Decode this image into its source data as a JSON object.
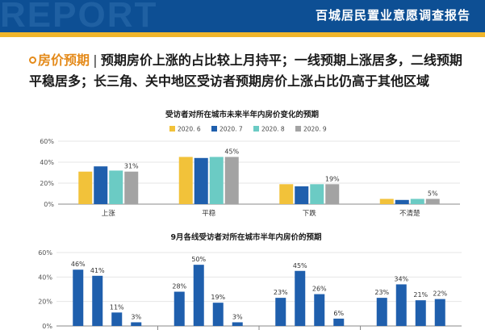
{
  "header": {
    "watermark": "REPORT",
    "title": "百城居民置业意愿调查报告"
  },
  "headline": {
    "tag": "房价预期",
    "separator": "|",
    "text": "预期房价上涨的占比较上月持平；一线预期上涨居多，二线预期平稳居多；长三角、关中地区受访者预期房价上涨占比仍高于其他区域"
  },
  "colors": {
    "s1": "#f2c23a",
    "s2": "#1f5fad",
    "s3": "#6bcbc4",
    "s4": "#a3a3a3"
  },
  "chart_data": [
    {
      "type": "bar",
      "title": "受访者对所在城市未来半年内房价变化的预期",
      "categories": [
        "上涨",
        "平稳",
        "下跌",
        "不清楚"
      ],
      "series": [
        {
          "name": "2020. 6",
          "values": [
            31,
            45,
            19,
            5
          ]
        },
        {
          "name": "2020. 7",
          "values": [
            36,
            44,
            17,
            4
          ]
        },
        {
          "name": "2020. 8",
          "values": [
            32,
            45,
            19,
            5
          ]
        },
        {
          "name": "2020. 9",
          "values": [
            31,
            45,
            19,
            5
          ]
        }
      ],
      "labeled_series": "2020. 9",
      "value_labels": [
        "31%",
        "45%",
        "19%",
        "5%"
      ],
      "yticks": [
        "0%",
        "20%",
        "40%",
        "60%"
      ],
      "ylim": [
        0,
        60
      ]
    },
    {
      "type": "bar",
      "title": "9月各线受访者对所在城市半年内房价的预期",
      "groups": 4,
      "values": [
        46,
        41,
        11,
        3,
        28,
        50,
        19,
        3,
        23,
        45,
        26,
        6,
        23,
        34,
        21,
        22
      ],
      "value_labels": [
        "46%",
        "41%",
        "11%",
        "3%",
        "28%",
        "50%",
        "19%",
        "3%",
        "23%",
        "45%",
        "26%",
        "6%",
        "23%",
        "34%",
        "21%",
        "22%"
      ],
      "yticks": [
        "0%",
        "20%",
        "40%",
        "60%"
      ],
      "ylim": [
        0,
        60
      ]
    }
  ]
}
